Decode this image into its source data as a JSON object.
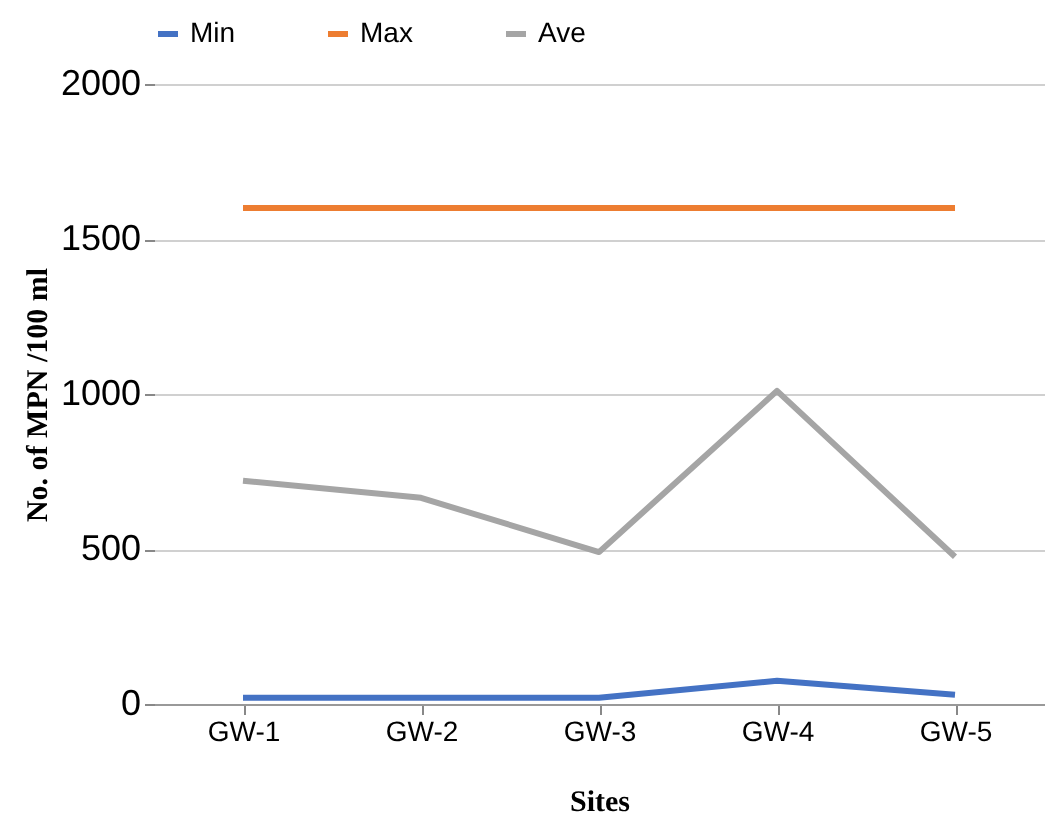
{
  "chart_data": {
    "type": "line",
    "xlabel": "Sites",
    "ylabel": "No. of MPN /100 ml",
    "categories": [
      "GW-1",
      "GW-2",
      "GW-3",
      "GW-4",
      "GW-5"
    ],
    "series": [
      {
        "name": "Min",
        "color": "#4472c4",
        "values": [
          20,
          20,
          20,
          75,
          30
        ]
      },
      {
        "name": "Max",
        "color": "#ed7d31",
        "values": [
          1600,
          1600,
          1600,
          1600,
          1600
        ]
      },
      {
        "name": "Ave",
        "color": "#a5a5a5",
        "values": [
          720,
          665,
          490,
          1010,
          475
        ]
      }
    ],
    "ylim": [
      0,
      2000
    ],
    "yticks": [
      0,
      500,
      1000,
      1500,
      2000
    ],
    "grid": "y",
    "legend": "top",
    "marker": "none",
    "line_style": "solid"
  }
}
